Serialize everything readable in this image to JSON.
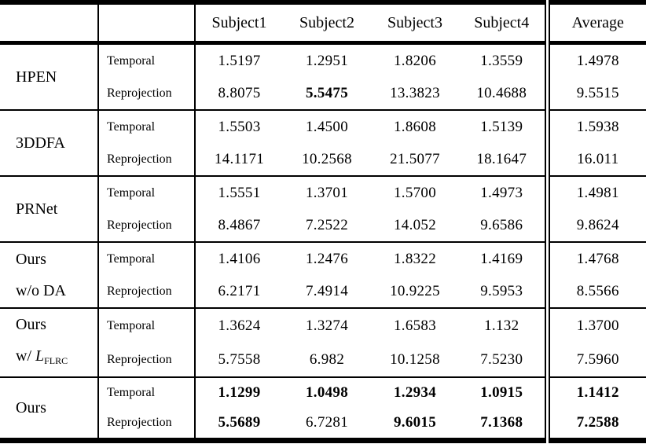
{
  "header": {
    "subjects": [
      "Subject1",
      "Subject2",
      "Subject3",
      "Subject4"
    ],
    "average": "Average"
  },
  "labels": {
    "temporal": "Temporal",
    "reprojection": "Reprojection"
  },
  "methods": [
    {
      "name_lines": [
        "HPEN"
      ],
      "rows": [
        {
          "metric": "Temporal",
          "values": [
            "1.5197",
            "1.2951",
            "1.8206",
            "1.3559",
            "1.4978"
          ],
          "bold": [
            false,
            false,
            false,
            false,
            false
          ]
        },
        {
          "metric": "Reprojection",
          "values": [
            "8.8075",
            "5.5475",
            "13.3823",
            "10.4688",
            "9.5515"
          ],
          "bold": [
            false,
            true,
            false,
            false,
            false
          ]
        }
      ]
    },
    {
      "name_lines": [
        "3DDFA"
      ],
      "rows": [
        {
          "metric": "Temporal",
          "values": [
            "1.5503",
            "1.4500",
            "1.8608",
            "1.5139",
            "1.5938"
          ],
          "bold": [
            false,
            false,
            false,
            false,
            false
          ]
        },
        {
          "metric": "Reprojection",
          "values": [
            "14.1171",
            "10.2568",
            "21.5077",
            "18.1647",
            "16.011"
          ],
          "bold": [
            false,
            false,
            false,
            false,
            false
          ]
        }
      ]
    },
    {
      "name_lines": [
        "PRNet"
      ],
      "rows": [
        {
          "metric": "Temporal",
          "values": [
            "1.5551",
            "1.3701",
            "1.5700",
            "1.4973",
            "1.4981"
          ],
          "bold": [
            false,
            false,
            false,
            false,
            false
          ]
        },
        {
          "metric": "Reprojection",
          "values": [
            "8.4867",
            "7.2522",
            "14.052",
            "9.6586",
            "9.8624"
          ],
          "bold": [
            false,
            false,
            false,
            false,
            false
          ]
        }
      ]
    },
    {
      "name_lines": [
        "Ours",
        "w/o DA"
      ],
      "rows": [
        {
          "metric": "Temporal",
          "values": [
            "1.4106",
            "1.2476",
            "1.8322",
            "1.4169",
            "1.4768"
          ],
          "bold": [
            false,
            false,
            false,
            false,
            false
          ]
        },
        {
          "metric": "Reprojection",
          "values": [
            "6.2171",
            "7.4914",
            "10.9225",
            "9.5953",
            "8.5566"
          ],
          "bold": [
            false,
            false,
            false,
            false,
            false
          ]
        }
      ]
    },
    {
      "name_lines": [
        "Ours"
      ],
      "name_line2": {
        "prefix": "w/ ",
        "symbol": "L",
        "subscript": "FLRC"
      },
      "rows": [
        {
          "metric": "Temporal",
          "values": [
            "1.3624",
            "1.3274",
            "1.6583",
            "1.132",
            "1.3700"
          ],
          "bold": [
            false,
            false,
            false,
            false,
            false
          ]
        },
        {
          "metric": "Reprojection",
          "values": [
            "5.7558",
            "6.982",
            "10.1258",
            "7.5230",
            "7.5960"
          ],
          "bold": [
            false,
            false,
            false,
            false,
            false
          ]
        }
      ]
    },
    {
      "name_lines": [
        "Ours"
      ],
      "rows": [
        {
          "metric": "Temporal",
          "values": [
            "1.1299",
            "1.0498",
            "1.2934",
            "1.0915",
            "1.1412"
          ],
          "bold": [
            true,
            true,
            true,
            true,
            true
          ]
        },
        {
          "metric": "Reprojection",
          "values": [
            "5.5689",
            "6.7281",
            "9.6015",
            "7.1368",
            "7.2588"
          ],
          "bold": [
            true,
            false,
            true,
            true,
            true
          ]
        }
      ]
    }
  ]
}
